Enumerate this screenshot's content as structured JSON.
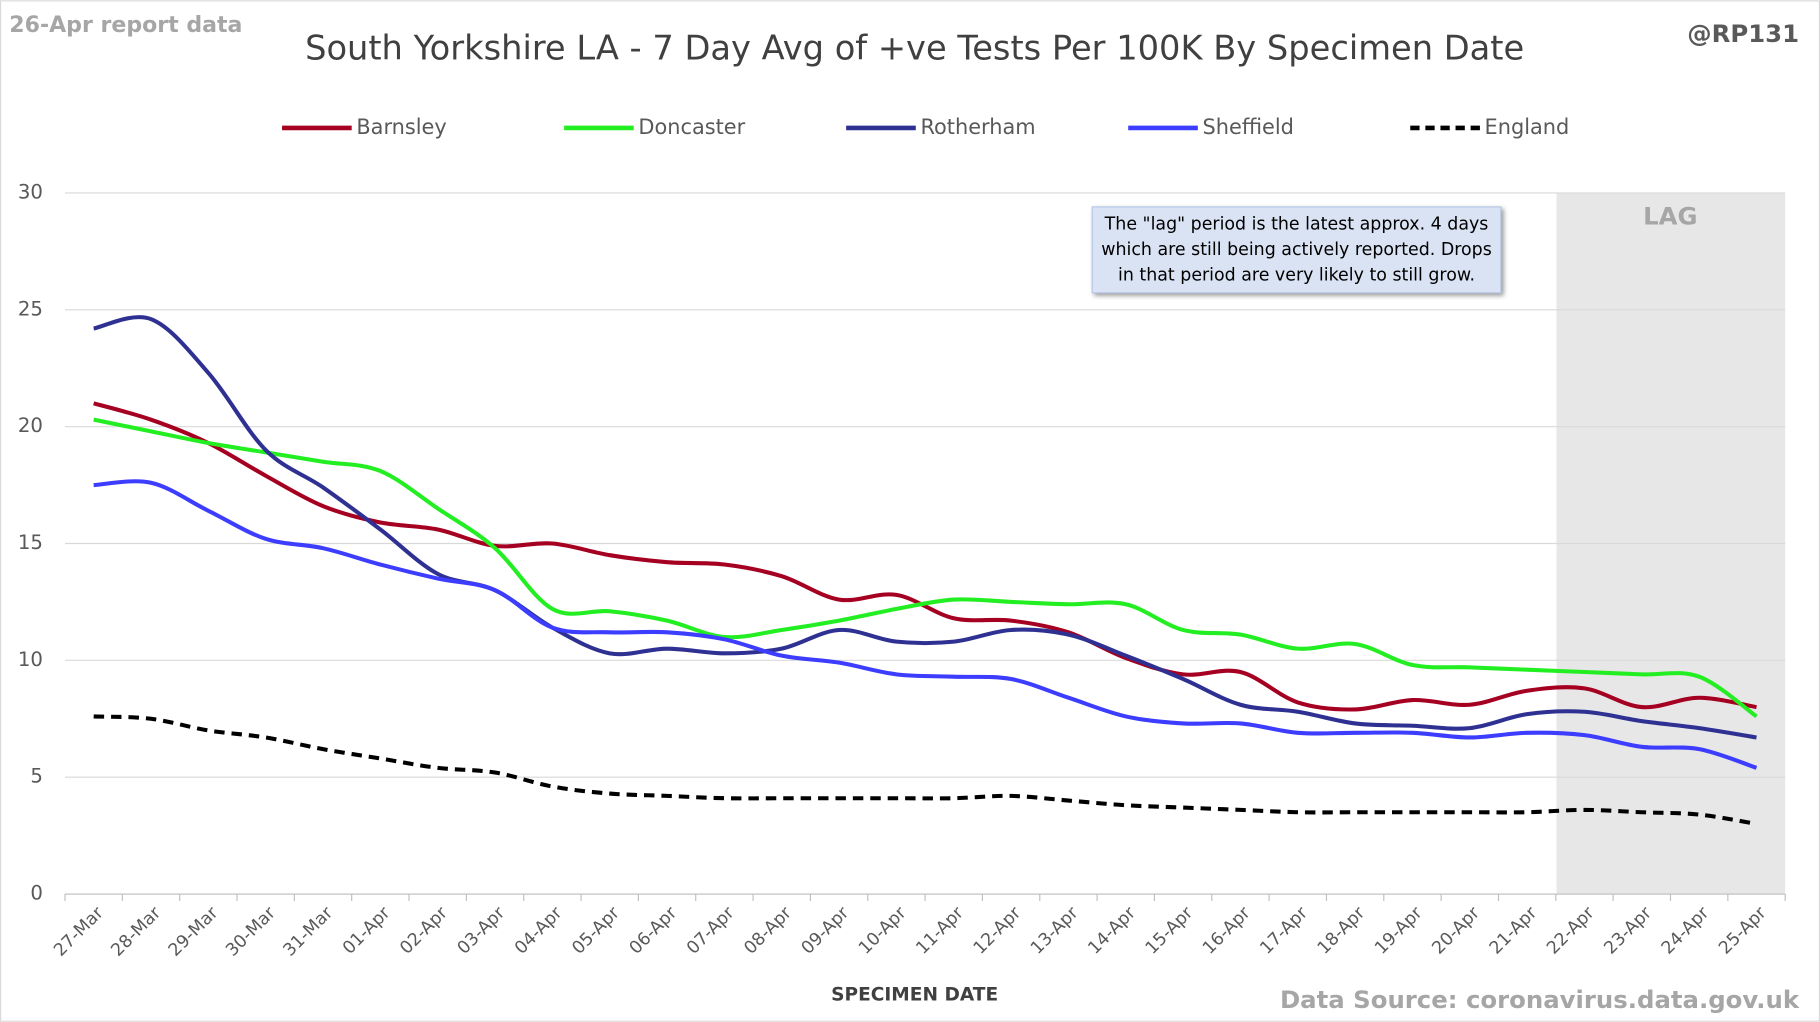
{
  "chart_data": {
    "type": "line",
    "title": "South Yorkshire LA - 7 Day Avg of +ve Tests Per 100K By Specimen Date",
    "report_note": "26-Apr report data",
    "handle": "@RP131",
    "source": "Data Source: coronavirus.data.gov.uk",
    "x_label": "SPECIMEN DATE",
    "annotation": [
      "The \"lag\" period is the latest approx. 4 days",
      "which are still being actively reported.  Drops",
      "in that period are very likely to still grow."
    ],
    "lag_label": "LAG",
    "categories": [
      "27-Mar",
      "28-Mar",
      "29-Mar",
      "30-Mar",
      "31-Mar",
      "01-Apr",
      "02-Apr",
      "03-Apr",
      "04-Apr",
      "05-Apr",
      "06-Apr",
      "07-Apr",
      "08-Apr",
      "09-Apr",
      "10-Apr",
      "11-Apr",
      "12-Apr",
      "13-Apr",
      "14-Apr",
      "15-Apr",
      "16-Apr",
      "17-Apr",
      "18-Apr",
      "19-Apr",
      "20-Apr",
      "21-Apr",
      "22-Apr",
      "23-Apr",
      "24-Apr",
      "25-Apr"
    ],
    "series": [
      {
        "name": "Barnsley",
        "color": "#a50021",
        "values": [
          21.0,
          20.3,
          19.3,
          17.9,
          16.6,
          15.9,
          15.6,
          14.9,
          15.0,
          14.5,
          14.2,
          14.1,
          13.6,
          12.6,
          12.8,
          11.8,
          11.7,
          11.2,
          10.1,
          9.4,
          9.5,
          8.2,
          7.9,
          8.3,
          8.1,
          8.7,
          8.8,
          8.0,
          8.4,
          8.0
        ]
      },
      {
        "name": "Doncaster",
        "color": "#22ee22",
        "values": [
          20.3,
          19.8,
          19.3,
          18.9,
          18.5,
          18.1,
          16.5,
          14.8,
          12.2,
          12.1,
          11.7,
          11.0,
          11.3,
          11.7,
          12.2,
          12.6,
          12.5,
          12.4,
          12.4,
          11.3,
          11.1,
          10.5,
          10.7,
          9.8,
          9.7,
          9.6,
          9.5,
          9.4,
          9.3,
          7.6
        ]
      },
      {
        "name": "Rotherham",
        "color": "#2e3192",
        "values": [
          24.2,
          24.6,
          22.3,
          19.0,
          17.4,
          15.6,
          13.7,
          13.0,
          11.4,
          10.3,
          10.5,
          10.3,
          10.5,
          11.3,
          10.8,
          10.8,
          11.3,
          11.1,
          10.2,
          9.2,
          8.1,
          7.8,
          7.3,
          7.2,
          7.1,
          7.7,
          7.8,
          7.4,
          7.1,
          6.7
        ]
      },
      {
        "name": "Sheffield",
        "color": "#3d3dff",
        "values": [
          17.5,
          17.6,
          16.4,
          15.2,
          14.8,
          14.1,
          13.5,
          13.0,
          11.4,
          11.2,
          11.2,
          10.9,
          10.2,
          9.9,
          9.4,
          9.3,
          9.2,
          8.4,
          7.6,
          7.3,
          7.3,
          6.9,
          6.9,
          6.9,
          6.7,
          6.9,
          6.8,
          6.3,
          6.2,
          5.4
        ]
      },
      {
        "name": "England",
        "color": "#000000",
        "dashed": true,
        "values": [
          7.6,
          7.5,
          7.0,
          6.7,
          6.2,
          5.8,
          5.4,
          5.2,
          4.6,
          4.3,
          4.2,
          4.1,
          4.1,
          4.1,
          4.1,
          4.1,
          4.2,
          4.0,
          3.8,
          3.7,
          3.6,
          3.5,
          3.5,
          3.5,
          3.5,
          3.5,
          3.6,
          3.5,
          3.4,
          3.0
        ]
      }
    ],
    "ylim": [
      0,
      30
    ],
    "yticks": [
      0,
      5,
      10,
      15,
      20,
      25,
      30
    ],
    "grid": true
  }
}
